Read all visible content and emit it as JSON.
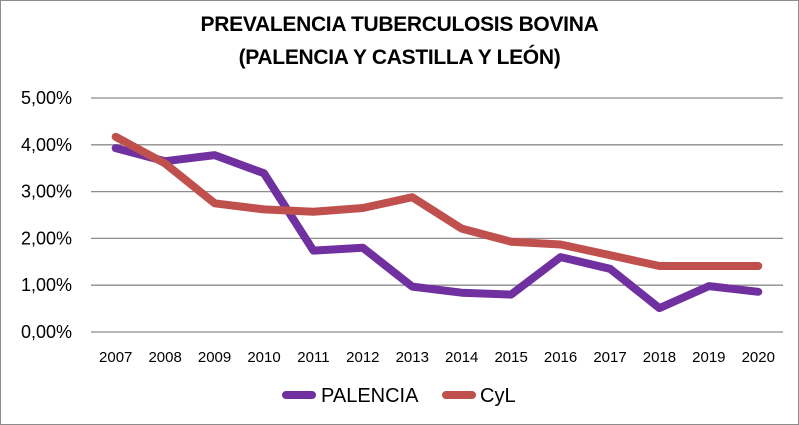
{
  "chart_data": {
    "type": "line",
    "title": "PREVALENCIA TUBERCULOSIS BOVINA",
    "subtitle": "(PALENCIA Y CASTILLA Y LEÓN)",
    "xlabel": "",
    "ylabel": "",
    "categories": [
      "2007",
      "2008",
      "2009",
      "2010",
      "2011",
      "2012",
      "2013",
      "2014",
      "2015",
      "2016",
      "2017",
      "2018",
      "2019",
      "2020"
    ],
    "ylim": [
      0,
      5
    ],
    "yticks": [
      0,
      1,
      2,
      3,
      4,
      5
    ],
    "ytick_labels": [
      "0,00%",
      "1,00%",
      "2,00%",
      "3,00%",
      "4,00%",
      "5,00%"
    ],
    "grid": true,
    "legend_position": "bottom",
    "series": [
      {
        "name": "PALENCIA",
        "color": "#7030A0",
        "values": [
          3.93,
          3.65,
          3.78,
          3.39,
          1.74,
          1.8,
          0.97,
          0.84,
          0.8,
          1.6,
          1.35,
          0.51,
          0.98,
          0.86
        ]
      },
      {
        "name": "CyL",
        "color": "#C0504D",
        "values": [
          4.17,
          3.6,
          2.75,
          2.62,
          2.57,
          2.65,
          2.88,
          2.21,
          1.93,
          1.87,
          1.64,
          1.41,
          1.41,
          1.41
        ]
      }
    ]
  }
}
